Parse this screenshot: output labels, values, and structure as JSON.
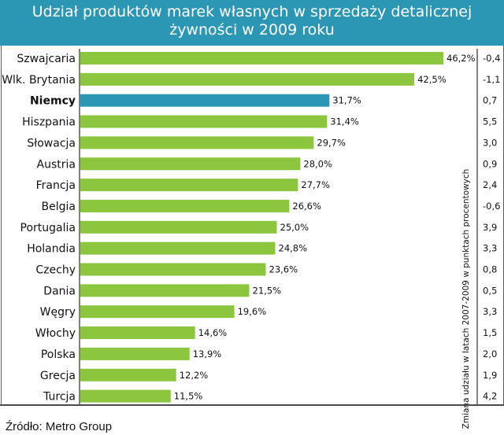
{
  "title_line1": "Udział produktów marek własnych w sprzedaży detalicznej",
  "title_line2": "żywności w 2009 roku",
  "source": "Źródło: Metro Group",
  "colors": {
    "header": "#2b97b4",
    "bar": "#8cc63f",
    "highlight": "#2b97b4"
  },
  "chart_data": {
    "type": "bar",
    "orientation": "horizontal",
    "categories": [
      "Szwajcaria",
      "Wlk. Brytania",
      "Niemcy",
      "Hiszpania",
      "Słowacja",
      "Austria",
      "Francja",
      "Belgia",
      "Portugalia",
      "Holandia",
      "Czechy",
      "Dania",
      "Węgry",
      "Włochy",
      "Polska",
      "Grecja",
      "Turcja"
    ],
    "values": [
      46.2,
      42.5,
      31.7,
      31.4,
      29.7,
      28.0,
      27.7,
      26.6,
      25.0,
      24.8,
      23.6,
      21.5,
      19.6,
      14.6,
      13.9,
      12.2,
      11.5
    ],
    "value_labels": [
      "46,2%",
      "42,5%",
      "31,7%",
      "31,4%",
      "29,7%",
      "28,0%",
      "27,7%",
      "26,6%",
      "25,0%",
      "24,8%",
      "23,6%",
      "21,5%",
      "19,6%",
      "14,6%",
      "13,9%",
      "12,2%",
      "11,5%"
    ],
    "highlighted_category": "Niemcy",
    "change_label": "Zmiana udziału w latach 2007-2009 w punktach procentowych",
    "change_values": [
      "-0,4",
      "-1,1",
      "0,7",
      "5,5",
      "3,0",
      "0,9",
      "2,4",
      "-0,6",
      "3,9",
      "3,3",
      "0,8",
      "0,5",
      "3,3",
      "1,5",
      "2,0",
      "1,9",
      "4,2"
    ]
  }
}
